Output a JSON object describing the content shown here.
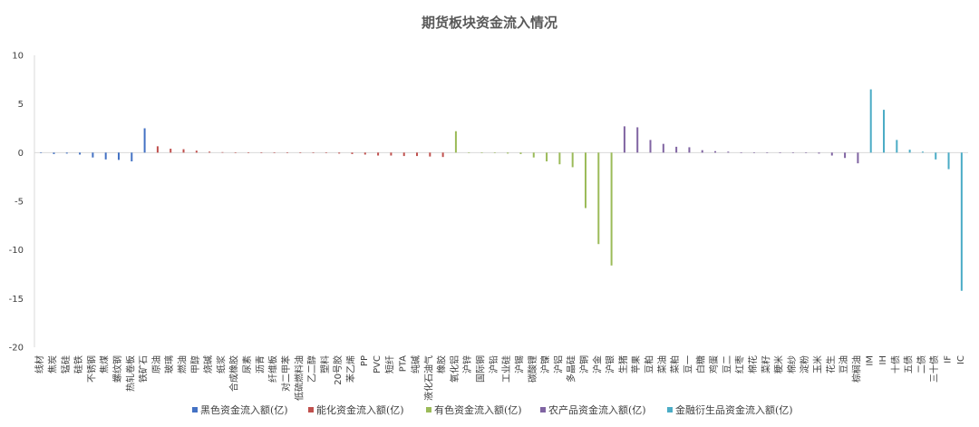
{
  "chart_data": {
    "type": "bar",
    "title": "期货板块资金流入情况",
    "xlabel": "",
    "ylabel": "",
    "ylim": [
      -20,
      10
    ],
    "yticks": [
      10,
      5,
      0,
      -5,
      -10,
      -15,
      -20
    ],
    "grid": false,
    "legend_position": "bottom",
    "colors": {
      "黑色资金流入额(亿)": "#4472C4",
      "能化资金流入额(亿)": "#C0504D",
      "有色资金流入额(亿)": "#9BBB59",
      "农产品资金流入额(亿)": "#8064A2",
      "金融衍生品资金流入额(亿)": "#4BACC6"
    },
    "legend": [
      "黑色资金流入额(亿)",
      "能化资金流入额(亿)",
      "有色资金流入额(亿)",
      "农产品资金流入额(亿)",
      "金融衍生品资金流入额(亿)"
    ],
    "categories": [
      "线材",
      "焦炭",
      "锰硅",
      "硅铁",
      "不锈钢",
      "焦煤",
      "螺纹钢",
      "热轧卷板",
      "铁矿石",
      "原油",
      "玻璃",
      "燃油",
      "甲醇",
      "烧碱",
      "纸浆",
      "合成橡胶",
      "尿素",
      "沥青",
      "纤维板",
      "对二甲苯",
      "低硫燃料油",
      "乙二醇",
      "塑料",
      "20号胶",
      "苯乙烯",
      "PP",
      "PVC",
      "短纤",
      "PTA",
      "纯碱",
      "液化石油气",
      "橡胶",
      "氧化铝",
      "沪锌",
      "国际铜",
      "沪铅",
      "工业硅",
      "沪锡",
      "碳酸锂",
      "沪镍",
      "沪铝",
      "多晶硅",
      "沪铜",
      "沪金",
      "沪银",
      "生猪",
      "苹果",
      "豆粕",
      "菜油",
      "菜粕",
      "豆一",
      "白糖",
      "鸡蛋",
      "豆二",
      "红枣",
      "棉花",
      "菜籽",
      "粳米",
      "棉纱",
      "淀粉",
      "玉米",
      "花生",
      "豆油",
      "棕榈油",
      "IM",
      "IH",
      "十债",
      "五债",
      "二债",
      "三十债",
      "IF",
      "IC"
    ],
    "sectors": [
      "黑色资金流入额(亿)",
      "黑色资金流入额(亿)",
      "黑色资金流入额(亿)",
      "黑色资金流入额(亿)",
      "黑色资金流入额(亿)",
      "黑色资金流入额(亿)",
      "黑色资金流入额(亿)",
      "黑色资金流入额(亿)",
      "黑色资金流入额(亿)",
      "能化资金流入额(亿)",
      "能化资金流入额(亿)",
      "能化资金流入额(亿)",
      "能化资金流入额(亿)",
      "能化资金流入额(亿)",
      "能化资金流入额(亿)",
      "能化资金流入额(亿)",
      "能化资金流入额(亿)",
      "能化资金流入额(亿)",
      "能化资金流入额(亿)",
      "能化资金流入额(亿)",
      "能化资金流入额(亿)",
      "能化资金流入额(亿)",
      "能化资金流入额(亿)",
      "能化资金流入额(亿)",
      "能化资金流入额(亿)",
      "能化资金流入额(亿)",
      "能化资金流入额(亿)",
      "能化资金流入额(亿)",
      "能化资金流入额(亿)",
      "能化资金流入额(亿)",
      "能化资金流入额(亿)",
      "能化资金流入额(亿)",
      "有色资金流入额(亿)",
      "有色资金流入额(亿)",
      "有色资金流入额(亿)",
      "有色资金流入额(亿)",
      "有色资金流入额(亿)",
      "有色资金流入额(亿)",
      "有色资金流入额(亿)",
      "有色资金流入额(亿)",
      "有色资金流入额(亿)",
      "有色资金流入额(亿)",
      "有色资金流入额(亿)",
      "有色资金流入额(亿)",
      "有色资金流入额(亿)",
      "农产品资金流入额(亿)",
      "农产品资金流入额(亿)",
      "农产品资金流入额(亿)",
      "农产品资金流入额(亿)",
      "农产品资金流入额(亿)",
      "农产品资金流入额(亿)",
      "农产品资金流入额(亿)",
      "农产品资金流入额(亿)",
      "农产品资金流入额(亿)",
      "农产品资金流入额(亿)",
      "农产品资金流入额(亿)",
      "农产品资金流入额(亿)",
      "农产品资金流入额(亿)",
      "农产品资金流入额(亿)",
      "农产品资金流入额(亿)",
      "农产品资金流入额(亿)",
      "农产品资金流入额(亿)",
      "农产品资金流入额(亿)",
      "农产品资金流入额(亿)",
      "金融衍生品资金流入额(亿)",
      "金融衍生品资金流入额(亿)",
      "金融衍生品资金流入额(亿)",
      "金融衍生品资金流入额(亿)",
      "金融衍生品资金流入额(亿)",
      "金融衍生品资金流入额(亿)",
      "金融衍生品资金流入额(亿)",
      "金融衍生品资金流入额(亿)"
    ],
    "values": [
      -0.05,
      -0.15,
      -0.1,
      -0.2,
      -0.5,
      -0.7,
      -0.75,
      -0.9,
      2.5,
      0.65,
      0.4,
      0.35,
      0.2,
      0.1,
      0.05,
      0.02,
      0.02,
      0.0,
      0.0,
      0.0,
      -0.02,
      -0.05,
      -0.05,
      -0.1,
      -0.15,
      -0.2,
      -0.3,
      -0.3,
      -0.35,
      -0.35,
      -0.4,
      -0.45,
      2.2,
      0.03,
      -0.03,
      -0.05,
      -0.1,
      -0.15,
      -0.5,
      -0.9,
      -1.2,
      -1.5,
      -5.7,
      -9.4,
      -11.6,
      2.7,
      2.6,
      1.3,
      0.9,
      0.6,
      0.55,
      0.25,
      0.15,
      0.1,
      0.02,
      0.0,
      0.0,
      0.0,
      -0.02,
      -0.05,
      -0.1,
      -0.3,
      -0.55,
      -1.1,
      6.5,
      4.4,
      1.3,
      0.3,
      0.1,
      -0.7,
      -1.7,
      -14.2
    ]
  }
}
